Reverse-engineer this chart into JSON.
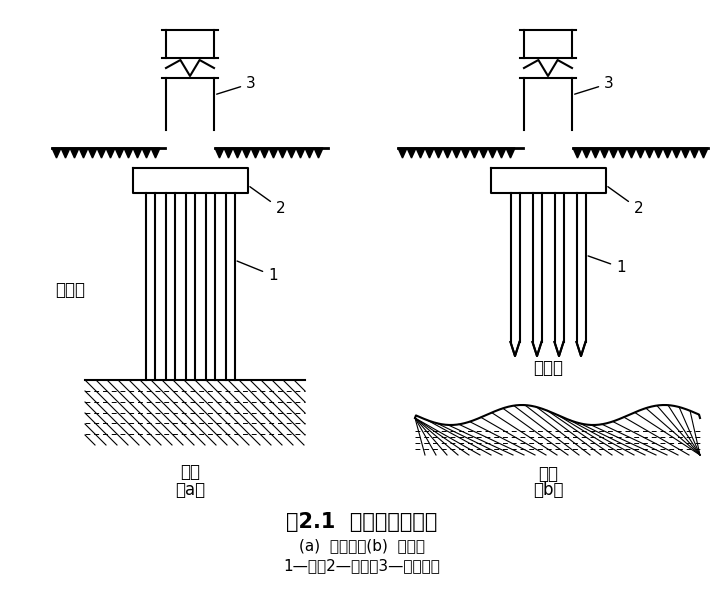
{
  "title": "图2.1  端承桩与摩擦桩",
  "subtitle1": "(a)  端承桩；(b)  摩擦桩",
  "subtitle2": "1—桩；2—承台；3—上部结构",
  "label_a": "（a）",
  "label_b": "（b）",
  "soft_layer_a": "软土层",
  "hard_layer_a": "硬层",
  "soft_layer_b": "软土层",
  "hard_layer_b": "硬层",
  "bg_color": "#ffffff",
  "line_color": "#000000",
  "title_fontsize": 15,
  "subtitle_fontsize": 11,
  "annot_fontsize": 11
}
